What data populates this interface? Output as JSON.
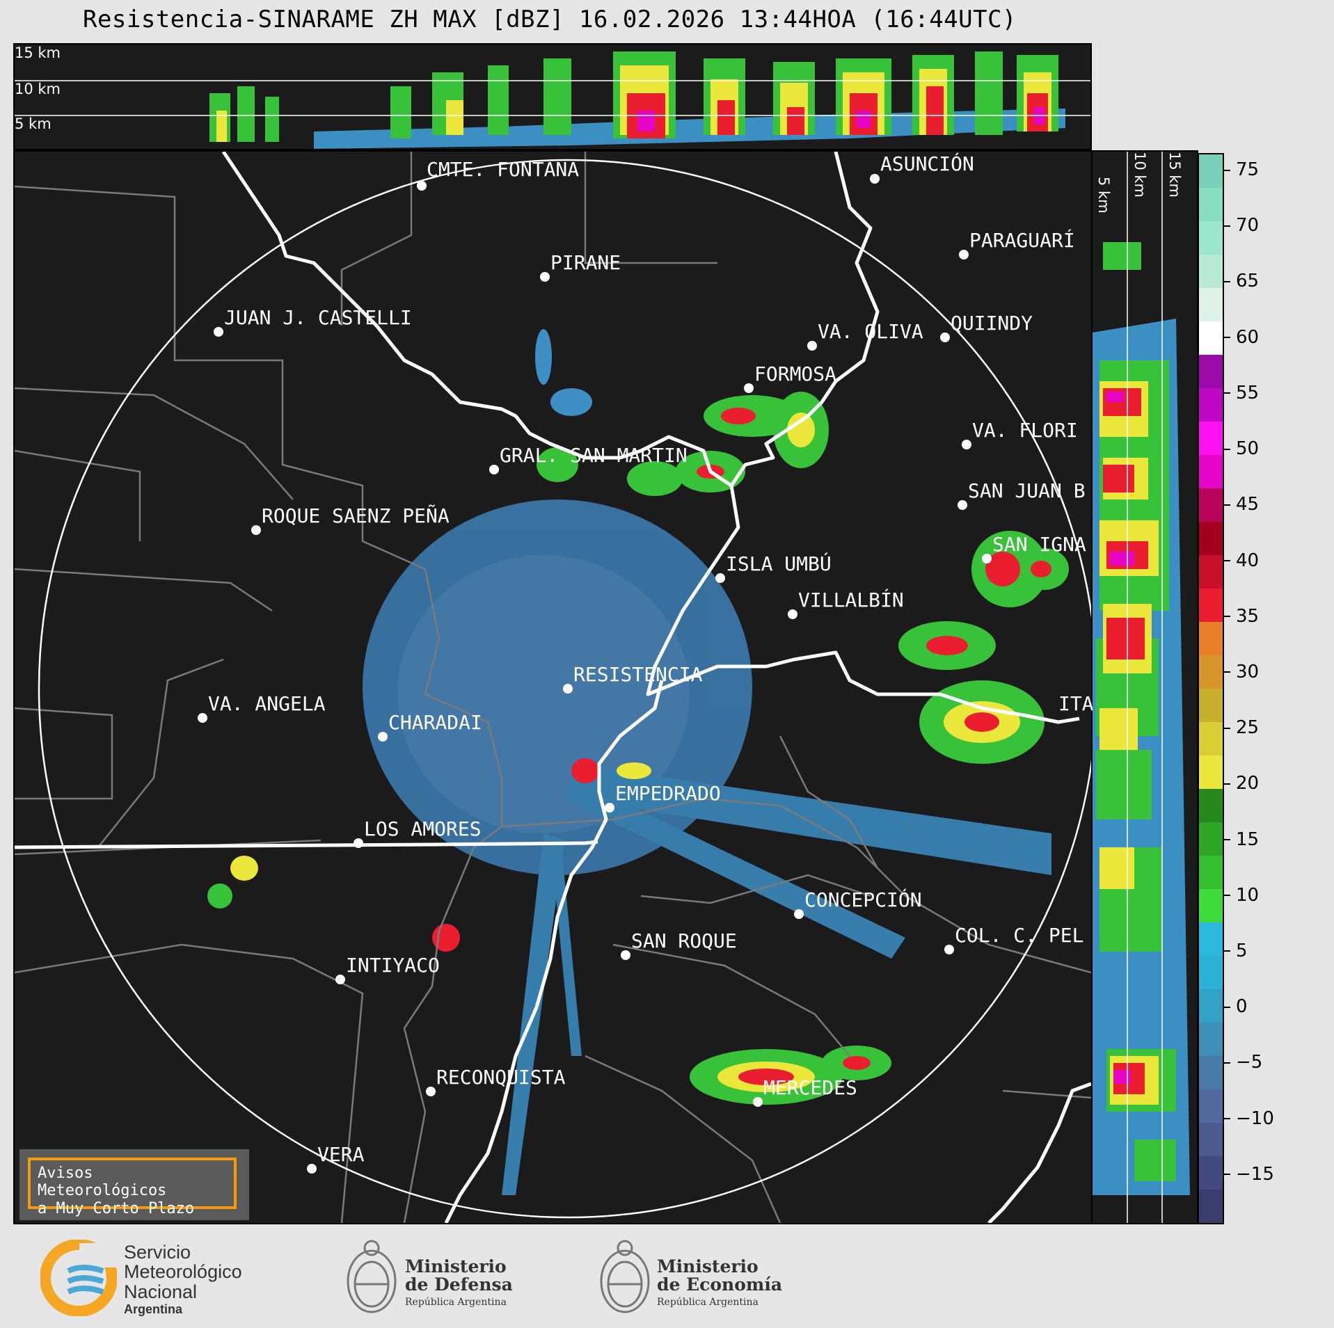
{
  "title": "Resistencia-SINARAME ZH MAX [dBZ] 16.02.2026 13:44HOA (16:44UTC)",
  "top_panel": {
    "altitude_labels": [
      "15 km",
      "10 km",
      "5 km"
    ]
  },
  "right_panel": {
    "altitude_labels": [
      "5 km",
      "10 km",
      "15 km"
    ]
  },
  "colorbar": {
    "unit": "dBZ",
    "ticks": [
      "75",
      "70",
      "65",
      "60",
      "55",
      "50",
      "45",
      "40",
      "35",
      "30",
      "25",
      "20",
      "15",
      "10",
      "5",
      "0",
      "−5",
      "−10",
      "−15"
    ],
    "colors": [
      "#3b3d6e",
      "#444a7d",
      "#4d5a8c",
      "#52699b",
      "#4a7ba8",
      "#3f8fb8",
      "#33a2c8",
      "#2bb2d6",
      "#2ab8dc",
      "#3ddc3a",
      "#35c12f",
      "#2ea625",
      "#27881c",
      "#ece83b",
      "#d9cf33",
      "#c8b02d",
      "#d8962a",
      "#e8802a",
      "#ea1e2e",
      "#c8102a",
      "#a3001e",
      "#b8045a",
      "#e405c7",
      "#ff10f0",
      "#bf06c6",
      "#9b0aa8",
      "#ffffff",
      "#dff2ea",
      "#b8ead7",
      "#9ae5cc",
      "#88dcc0",
      "#78d0b8"
    ]
  },
  "cities": [
    {
      "name": "CMTE. FONTANA"
    },
    {
      "name": "ASUNCIÓN"
    },
    {
      "name": "PIRANE"
    },
    {
      "name": "PARAGUARÍ"
    },
    {
      "name": "JUAN J. CASTELLI"
    },
    {
      "name": "VA. OLIVA"
    },
    {
      "name": "QUIINDY"
    },
    {
      "name": "FORMOSA"
    },
    {
      "name": "VA. FLORI"
    },
    {
      "name": "GRAL. SAN MARTIN"
    },
    {
      "name": "SAN JUAN B"
    },
    {
      "name": "ROQUE SAENZ PEÑA"
    },
    {
      "name": "SAN IGNA"
    },
    {
      "name": "ISLA UMBÚ"
    },
    {
      "name": "VILLALBÍN"
    },
    {
      "name": "RESISTENCIA"
    },
    {
      "name": "ITA"
    },
    {
      "name": "VA. ANGELA"
    },
    {
      "name": "CHARADAI"
    },
    {
      "name": "EMPEDRADO"
    },
    {
      "name": "LOS AMORES"
    },
    {
      "name": "CONCEPCIÓN"
    },
    {
      "name": "SAN ROQUE"
    },
    {
      "name": "COL. C. PEL"
    },
    {
      "name": "INTIYACO"
    },
    {
      "name": "RECONQUISTA"
    },
    {
      "name": "MERCEDES"
    },
    {
      "name": "VERA"
    }
  ],
  "avisos": {
    "line1": "Avisos Meteorológicos",
    "line2": "a Muy Corto Plazo"
  },
  "footer": {
    "smn": {
      "line1": "Servicio",
      "line2": "Meteorológico",
      "line3": "Nacional",
      "line4": "Argentina"
    },
    "defensa": {
      "line1": "Ministerio",
      "line2": "de Defensa",
      "line3": "República Argentina"
    },
    "economia": {
      "line1": "Ministerio",
      "line2": "de Economía",
      "line3": "República Argentina"
    }
  }
}
